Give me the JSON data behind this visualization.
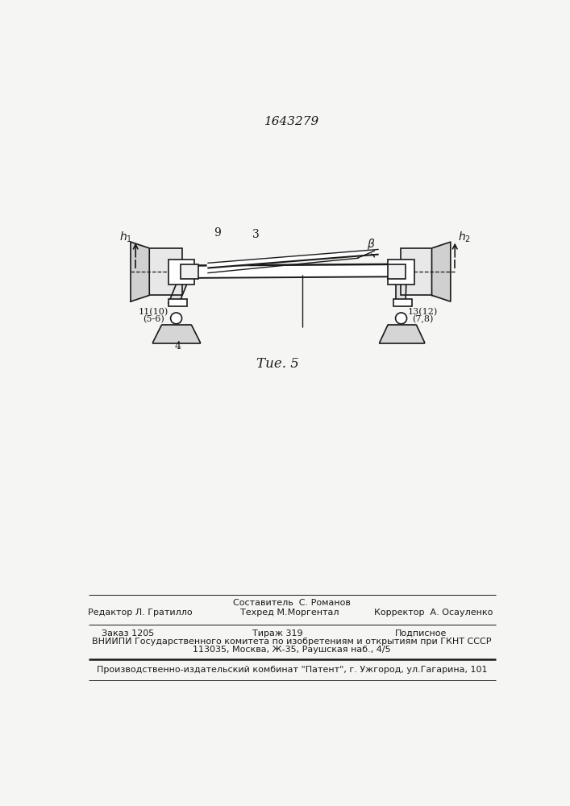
{
  "patent_number": "1643279",
  "fig_label": "Τие. 5",
  "bg_color": "#f5f5f3",
  "lc": "#1a1a1a",
  "text_col1_label": "Составитель  С. Романов",
  "text_editor": "Редактор Л. Гратилло",
  "text_tehred": "Техред М.Моргентал",
  "text_korrektor": "Корректор  А. Осауленко",
  "text_zakaz": "Заказ 1205",
  "text_tirazh": "Тираж 319",
  "text_podpisnoe": "Подписное",
  "text_vnipi": "ВНИИПИ Государственного комитета по изобретениям и открытиям при ГКНТ СССР",
  "text_address": "113035, Москва, Ж-35, Раушская наб., 4/5",
  "text_patent_pub": "Производственно-издательский комбинат \"Патент\", г. Ужгород, ул.Гагарина, 101"
}
